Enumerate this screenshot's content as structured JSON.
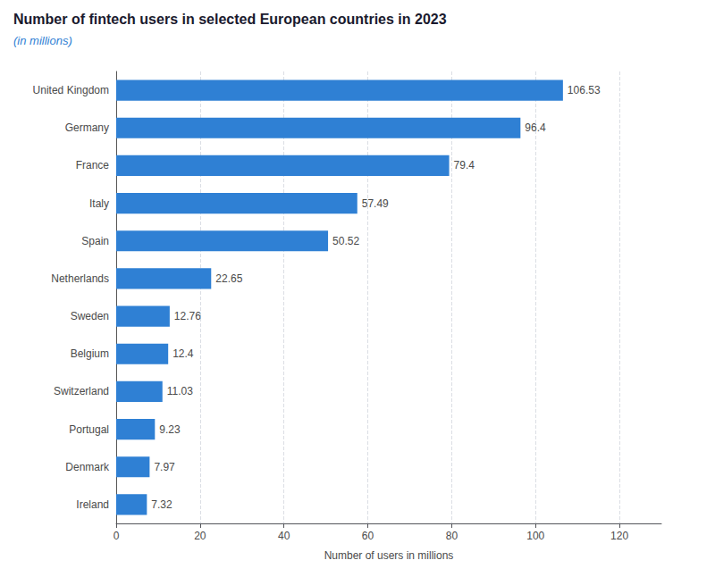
{
  "chart_data": {
    "type": "bar",
    "orientation": "horizontal",
    "title": "Number of fintech users in selected European countries in 2023",
    "subtitle": "(in millions)",
    "categories": [
      "United Kingdom",
      "Germany",
      "France",
      "Italy",
      "Spain",
      "Netherlands",
      "Sweden",
      "Belgium",
      "Switzerland",
      "Portugal",
      "Denmark",
      "Ireland"
    ],
    "values": [
      106.53,
      96.4,
      79.4,
      57.49,
      50.52,
      22.65,
      12.76,
      12.4,
      11.03,
      9.23,
      7.97,
      7.32
    ],
    "color": "#2f80d4",
    "xlabel": "Number of users in millions",
    "xlim": [
      0,
      130
    ],
    "xticks": [
      0,
      20,
      40,
      60,
      80,
      100,
      120
    ],
    "grid": true,
    "data_labels": true
  }
}
